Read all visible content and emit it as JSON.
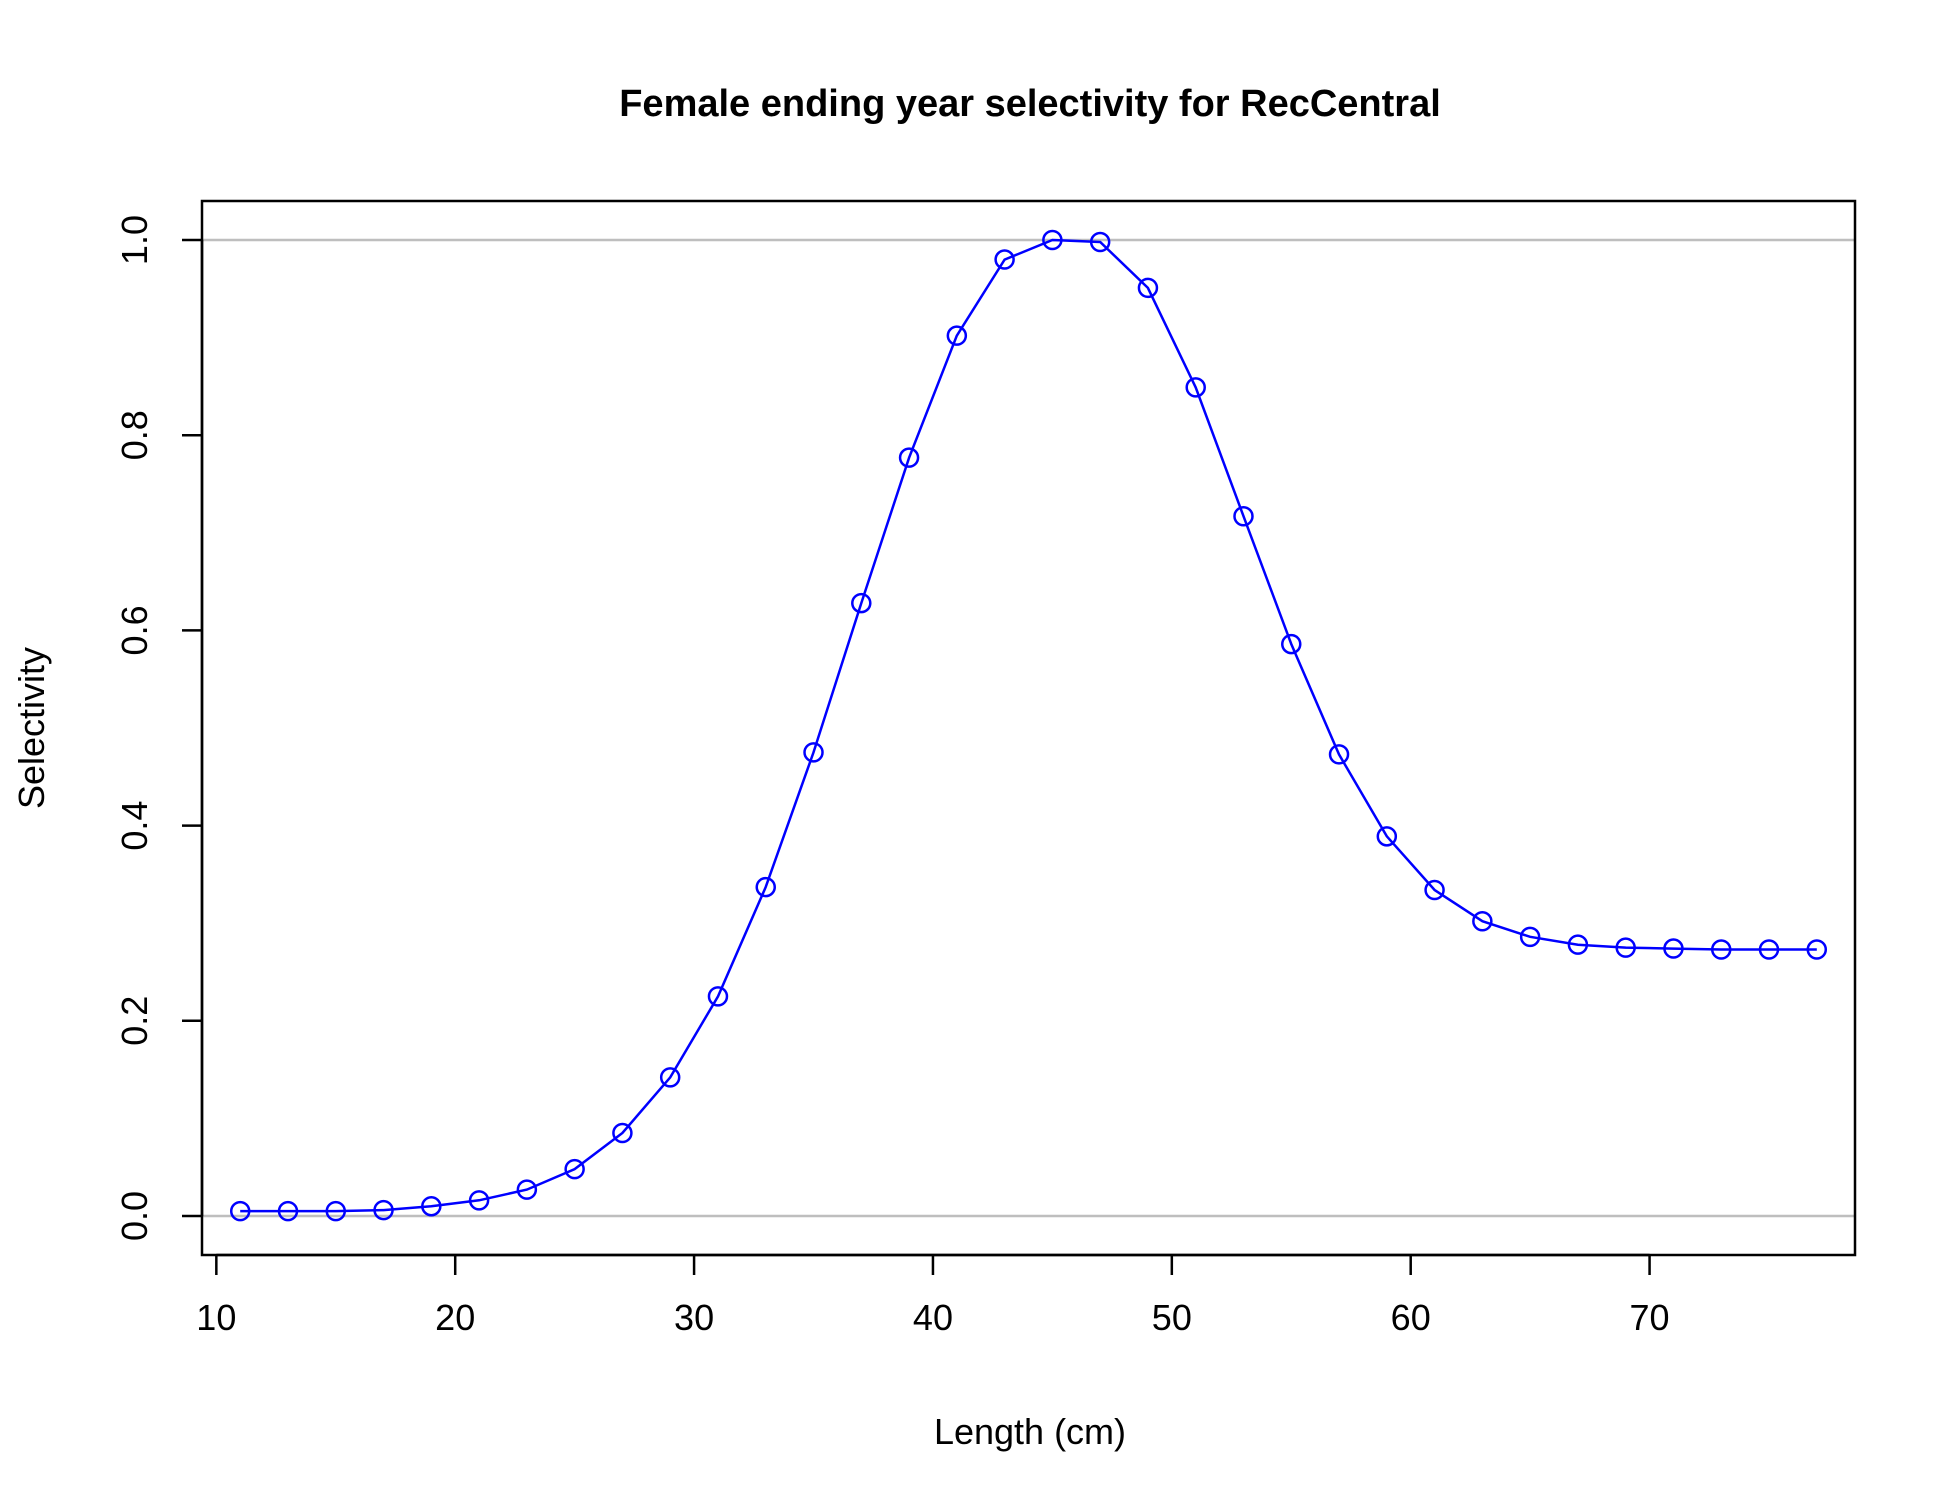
{
  "chart_data": {
    "type": "line",
    "title": "Female ending year selectivity for RecCentral",
    "xlabel": "Length (cm)",
    "ylabel": "Selectivity",
    "xlim": [
      9.4,
      78.6
    ],
    "ylim": [
      -0.04,
      1.04
    ],
    "x_ticks": [
      10,
      20,
      30,
      40,
      50,
      60,
      70
    ],
    "x_tick_labels": [
      "10",
      "20",
      "30",
      "40",
      "50",
      "60",
      "70"
    ],
    "y_ticks": [
      0.0,
      0.2,
      0.4,
      0.6,
      0.8,
      1.0
    ],
    "y_tick_labels": [
      "0.0",
      "0.2",
      "0.4",
      "0.6",
      "0.8",
      "1.0"
    ],
    "reference_lines": [
      0,
      1
    ],
    "reference_line_color": "#bebebe",
    "series_color": "#0000ff",
    "grid": false,
    "marker": "open-circle",
    "x": [
      11,
      13,
      15,
      17,
      19,
      21,
      23,
      25,
      27,
      29,
      31,
      33,
      35,
      37,
      39,
      41,
      43,
      45,
      47,
      49,
      51,
      53,
      55,
      57,
      59,
      61,
      63,
      65,
      67,
      69,
      71,
      73,
      75,
      77
    ],
    "series": [
      {
        "values": [
          0.005,
          0.005,
          0.005,
          0.006,
          0.01,
          0.016,
          0.027,
          0.048,
          0.085,
          0.142,
          0.225,
          0.337,
          0.475,
          0.628,
          0.777,
          0.902,
          0.98,
          1.0,
          0.998,
          0.951,
          0.849,
          0.717,
          0.586,
          0.473,
          0.389,
          0.334,
          0.302,
          0.286,
          0.278,
          0.275,
          0.274,
          0.273,
          0.273,
          0.273
        ]
      }
    ]
  }
}
